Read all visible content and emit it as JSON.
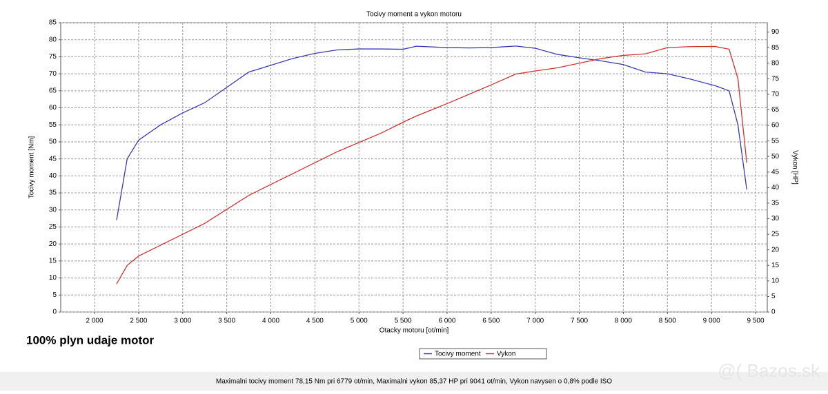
{
  "chart_data": {
    "type": "line",
    "title": "Tocivy moment a vykon motoru",
    "x_label": "Otacky motoru [ot/min]",
    "y_label": "Tocivy moment [Nm]",
    "y2_label": "Vykon [HP]",
    "annotation": "100% plyn udaje motor",
    "footer": "Maximalni tocivy moment 78,15 Nm pri 6779 ot/min,  Maximalni vykon 85,37 HP pri 9041 ot/min,  Vykon navysen o 0,8% podle ISO",
    "watermark": "@( Bazos.sk",
    "x": [
      2250,
      2370,
      2500,
      2750,
      3000,
      3250,
      3500,
      3750,
      4000,
      4250,
      4500,
      4750,
      5000,
      5250,
      5500,
      5650,
      6000,
      6250,
      6500,
      6779,
      7000,
      7250,
      7500,
      7750,
      8000,
      8250,
      8500,
      8750,
      9041,
      9200,
      9300,
      9400
    ],
    "series": [
      {
        "name": "Tocivy moment",
        "color": "#3a3ab0",
        "axis": "y",
        "values": [
          27,
          45,
          50.5,
          55,
          58.5,
          61.5,
          66,
          70.5,
          72.5,
          74.5,
          76,
          77,
          77.3,
          77.3,
          77.2,
          78.1,
          77.7,
          77.6,
          77.7,
          78.15,
          77.5,
          75.7,
          74.7,
          73.8,
          72.7,
          70.5,
          70,
          68.5,
          66.5,
          65,
          55,
          36
        ]
      },
      {
        "name": "Vykon",
        "color": "#cc3333",
        "axis": "y2",
        "values": [
          9,
          15,
          18,
          21.5,
          25,
          28.5,
          33,
          37.5,
          41,
          44.5,
          48,
          51.5,
          54.5,
          57.5,
          61,
          63,
          67,
          70,
          73,
          76.5,
          77.5,
          78.5,
          80,
          81.5,
          82.5,
          83,
          85,
          85.3,
          85.37,
          84.5,
          75,
          48
        ]
      }
    ],
    "xlim": [
      1616,
      9633
    ],
    "xticks": [
      {
        "value": 2000,
        "label": "2 000"
      },
      {
        "value": 2500,
        "label": "2 500"
      },
      {
        "value": 3000,
        "label": "3 000"
      },
      {
        "value": 3500,
        "label": "3 500"
      },
      {
        "value": 4000,
        "label": "4 000"
      },
      {
        "value": 4500,
        "label": "4 500"
      },
      {
        "value": 5000,
        "label": "5 000"
      },
      {
        "value": 5500,
        "label": "5 500"
      },
      {
        "value": 6000,
        "label": "6 000"
      },
      {
        "value": 6500,
        "label": "6 500"
      },
      {
        "value": 7000,
        "label": "7 000"
      },
      {
        "value": 7500,
        "label": "7 500"
      },
      {
        "value": 8000,
        "label": "8 000"
      },
      {
        "value": 8500,
        "label": "8 500"
      },
      {
        "value": 9000,
        "label": "9 000"
      },
      {
        "value": 9500,
        "label": "9 500"
      }
    ],
    "ylim": [
      0,
      85
    ],
    "yticks": [
      0,
      5,
      10,
      15,
      20,
      25,
      30,
      35,
      40,
      45,
      50,
      55,
      60,
      65,
      70,
      75,
      80,
      85
    ],
    "y2lim": [
      0,
      93
    ],
    "y2ticks": [
      0,
      5,
      10,
      15,
      20,
      25,
      30,
      35,
      40,
      45,
      50,
      55,
      60,
      65,
      70,
      75,
      80,
      85,
      90
    ],
    "grid": true
  }
}
